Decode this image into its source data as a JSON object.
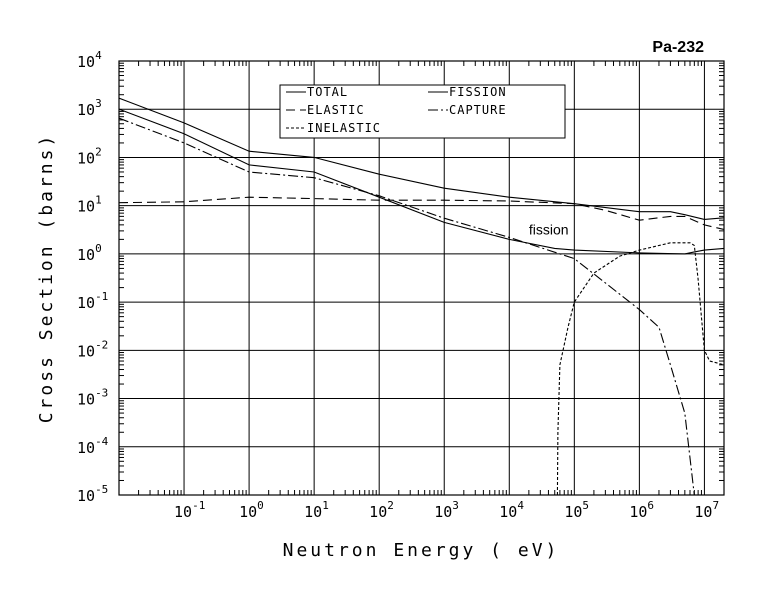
{
  "chart_data": {
    "type": "line",
    "title": "Pa-232",
    "xlabel": "Neutron Energy ( eV)",
    "ylabel": "Cross Section (barns)",
    "x_scale": "log",
    "y_scale": "log",
    "xlim": [
      0.01,
      20000000
    ],
    "ylim": [
      1e-05,
      10000
    ],
    "grid": true,
    "legend_position": "top-center",
    "x_ticks": [
      {
        "base": "10",
        "exp": "-1",
        "value": 0.1
      },
      {
        "base": "10",
        "exp": "0",
        "value": 1
      },
      {
        "base": "10",
        "exp": "1",
        "value": 10
      },
      {
        "base": "10",
        "exp": "2",
        "value": 100
      },
      {
        "base": "10",
        "exp": "3",
        "value": 1000
      },
      {
        "base": "10",
        "exp": "4",
        "value": 10000
      },
      {
        "base": "10",
        "exp": "5",
        "value": 100000
      },
      {
        "base": "10",
        "exp": "6",
        "value": 1000000
      },
      {
        "base": "10",
        "exp": "7",
        "value": 10000000
      }
    ],
    "y_ticks": [
      {
        "base": "10",
        "exp": "4",
        "value": 10000
      },
      {
        "base": "10",
        "exp": "3",
        "value": 1000
      },
      {
        "base": "10",
        "exp": "2",
        "value": 100
      },
      {
        "base": "10",
        "exp": "1",
        "value": 10
      },
      {
        "base": "10",
        "exp": "0",
        "value": 1
      },
      {
        "base": "10",
        "exp": "-1",
        "value": 0.1
      },
      {
        "base": "10",
        "exp": "-2",
        "value": 0.01
      },
      {
        "base": "10",
        "exp": "-3",
        "value": 0.001
      },
      {
        "base": "10",
        "exp": "-4",
        "value": 0.0001
      },
      {
        "base": "10",
        "exp": "-5",
        "value": 1e-05
      }
    ],
    "annotations": [
      {
        "text": "fission",
        "x": 20000,
        "y": 2.5
      }
    ],
    "series": [
      {
        "name": "TOTAL",
        "dash": "solid",
        "points": [
          [
            0.01,
            1700
          ],
          [
            0.1,
            520
          ],
          [
            1,
            135
          ],
          [
            10,
            100
          ],
          [
            100,
            45
          ],
          [
            1000,
            23
          ],
          [
            10000,
            15
          ],
          [
            100000,
            11
          ],
          [
            1000000,
            7.5
          ],
          [
            3000000,
            7.5
          ],
          [
            5000000,
            6.5
          ],
          [
            10000000,
            5.2
          ],
          [
            20000000,
            5.6
          ]
        ]
      },
      {
        "name": "FISSION",
        "dash": "solid",
        "points": [
          [
            0.01,
            1000
          ],
          [
            0.1,
            310
          ],
          [
            1,
            70
          ],
          [
            10,
            50
          ],
          [
            100,
            15
          ],
          [
            1000,
            4.5
          ],
          [
            10000,
            2.0
          ],
          [
            50000,
            1.3
          ],
          [
            100000,
            1.2
          ],
          [
            1000000,
            1.05
          ],
          [
            5000000,
            1.0
          ],
          [
            7000000,
            1.1
          ],
          [
            10000000,
            1.2
          ],
          [
            20000000,
            1.3
          ]
        ]
      },
      {
        "name": "ELASTIC",
        "dash": "long-dash",
        "points": [
          [
            0.01,
            11.5
          ],
          [
            0.1,
            12
          ],
          [
            1,
            15
          ],
          [
            10,
            14
          ],
          [
            100,
            13
          ],
          [
            1000,
            13
          ],
          [
            10000,
            12.5
          ],
          [
            100000,
            11
          ],
          [
            300000,
            8
          ],
          [
            1000000,
            5
          ],
          [
            3000000,
            6
          ],
          [
            5000000,
            6
          ],
          [
            10000000,
            4
          ],
          [
            20000000,
            3.2
          ]
        ]
      },
      {
        "name": "CAPTURE",
        "dash": "dash-dot",
        "points": [
          [
            0.01,
            650
          ],
          [
            0.1,
            200
          ],
          [
            1,
            50
          ],
          [
            10,
            38
          ],
          [
            100,
            16
          ],
          [
            1000,
            5.5
          ],
          [
            10000,
            2.2
          ],
          [
            100000,
            0.8
          ],
          [
            1000000,
            0.07
          ],
          [
            2000000,
            0.03
          ],
          [
            3000000,
            0.005
          ],
          [
            5000000,
            0.0005
          ],
          [
            7000000,
            1e-05
          ]
        ]
      },
      {
        "name": "INELASTIC",
        "dash": "short-dash",
        "points": [
          [
            55000,
            1e-05
          ],
          [
            56000,
            0.0002
          ],
          [
            60000,
            0.005
          ],
          [
            80000,
            0.03
          ],
          [
            100000,
            0.1
          ],
          [
            200000,
            0.4
          ],
          [
            500000,
            0.9
          ],
          [
            1000000,
            1.2
          ],
          [
            3000000,
            1.7
          ],
          [
            6000000,
            1.7
          ],
          [
            7000000,
            1.5
          ],
          [
            8000000,
            0.3
          ],
          [
            9000000,
            0.05
          ],
          [
            10000000,
            0.01
          ],
          [
            12000000,
            0.006
          ],
          [
            20000000,
            0.005
          ]
        ]
      }
    ]
  }
}
